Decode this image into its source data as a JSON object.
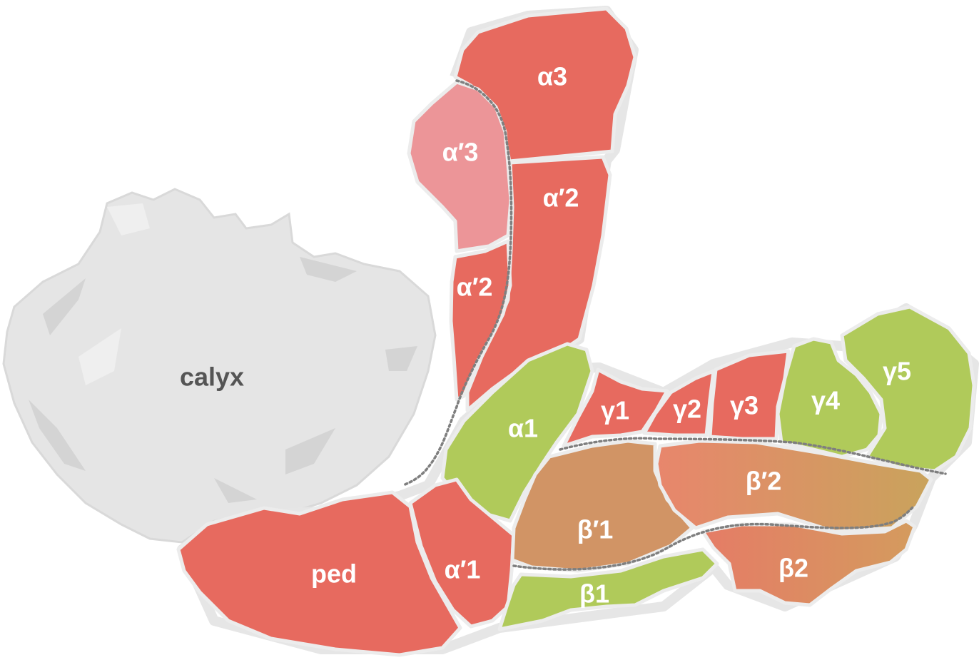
{
  "diagram": {
    "colors": {
      "alpha_beta": "#e96a5f",
      "alpha_prime_3": "#ec9598",
      "gamma_alpha1": "#b0ca5a",
      "beta_prime": "#d39465",
      "beta_prime2_start": "#e8886a",
      "beta_prime2_end": "#c9a25d",
      "beta2_start": "#e57d65",
      "beta2_end": "#d39a5f",
      "calyx": "#e5e5e5",
      "outline": "#e6e6e6",
      "divider": "#7f7f7f"
    },
    "labels": {
      "calyx": "calyx",
      "a3": "α3",
      "ap3": "α′3",
      "ap2_upper": "α′2",
      "ap2_lower": "α′2",
      "a1": "α1",
      "ped": "ped",
      "ap1": "α′1",
      "g1": "γ1",
      "g2": "γ2",
      "g3": "γ3",
      "g4": "γ4",
      "g5": "γ5",
      "bp1": "β′1",
      "bp2": "β′2",
      "b1": "β1",
      "b2": "β2"
    }
  }
}
